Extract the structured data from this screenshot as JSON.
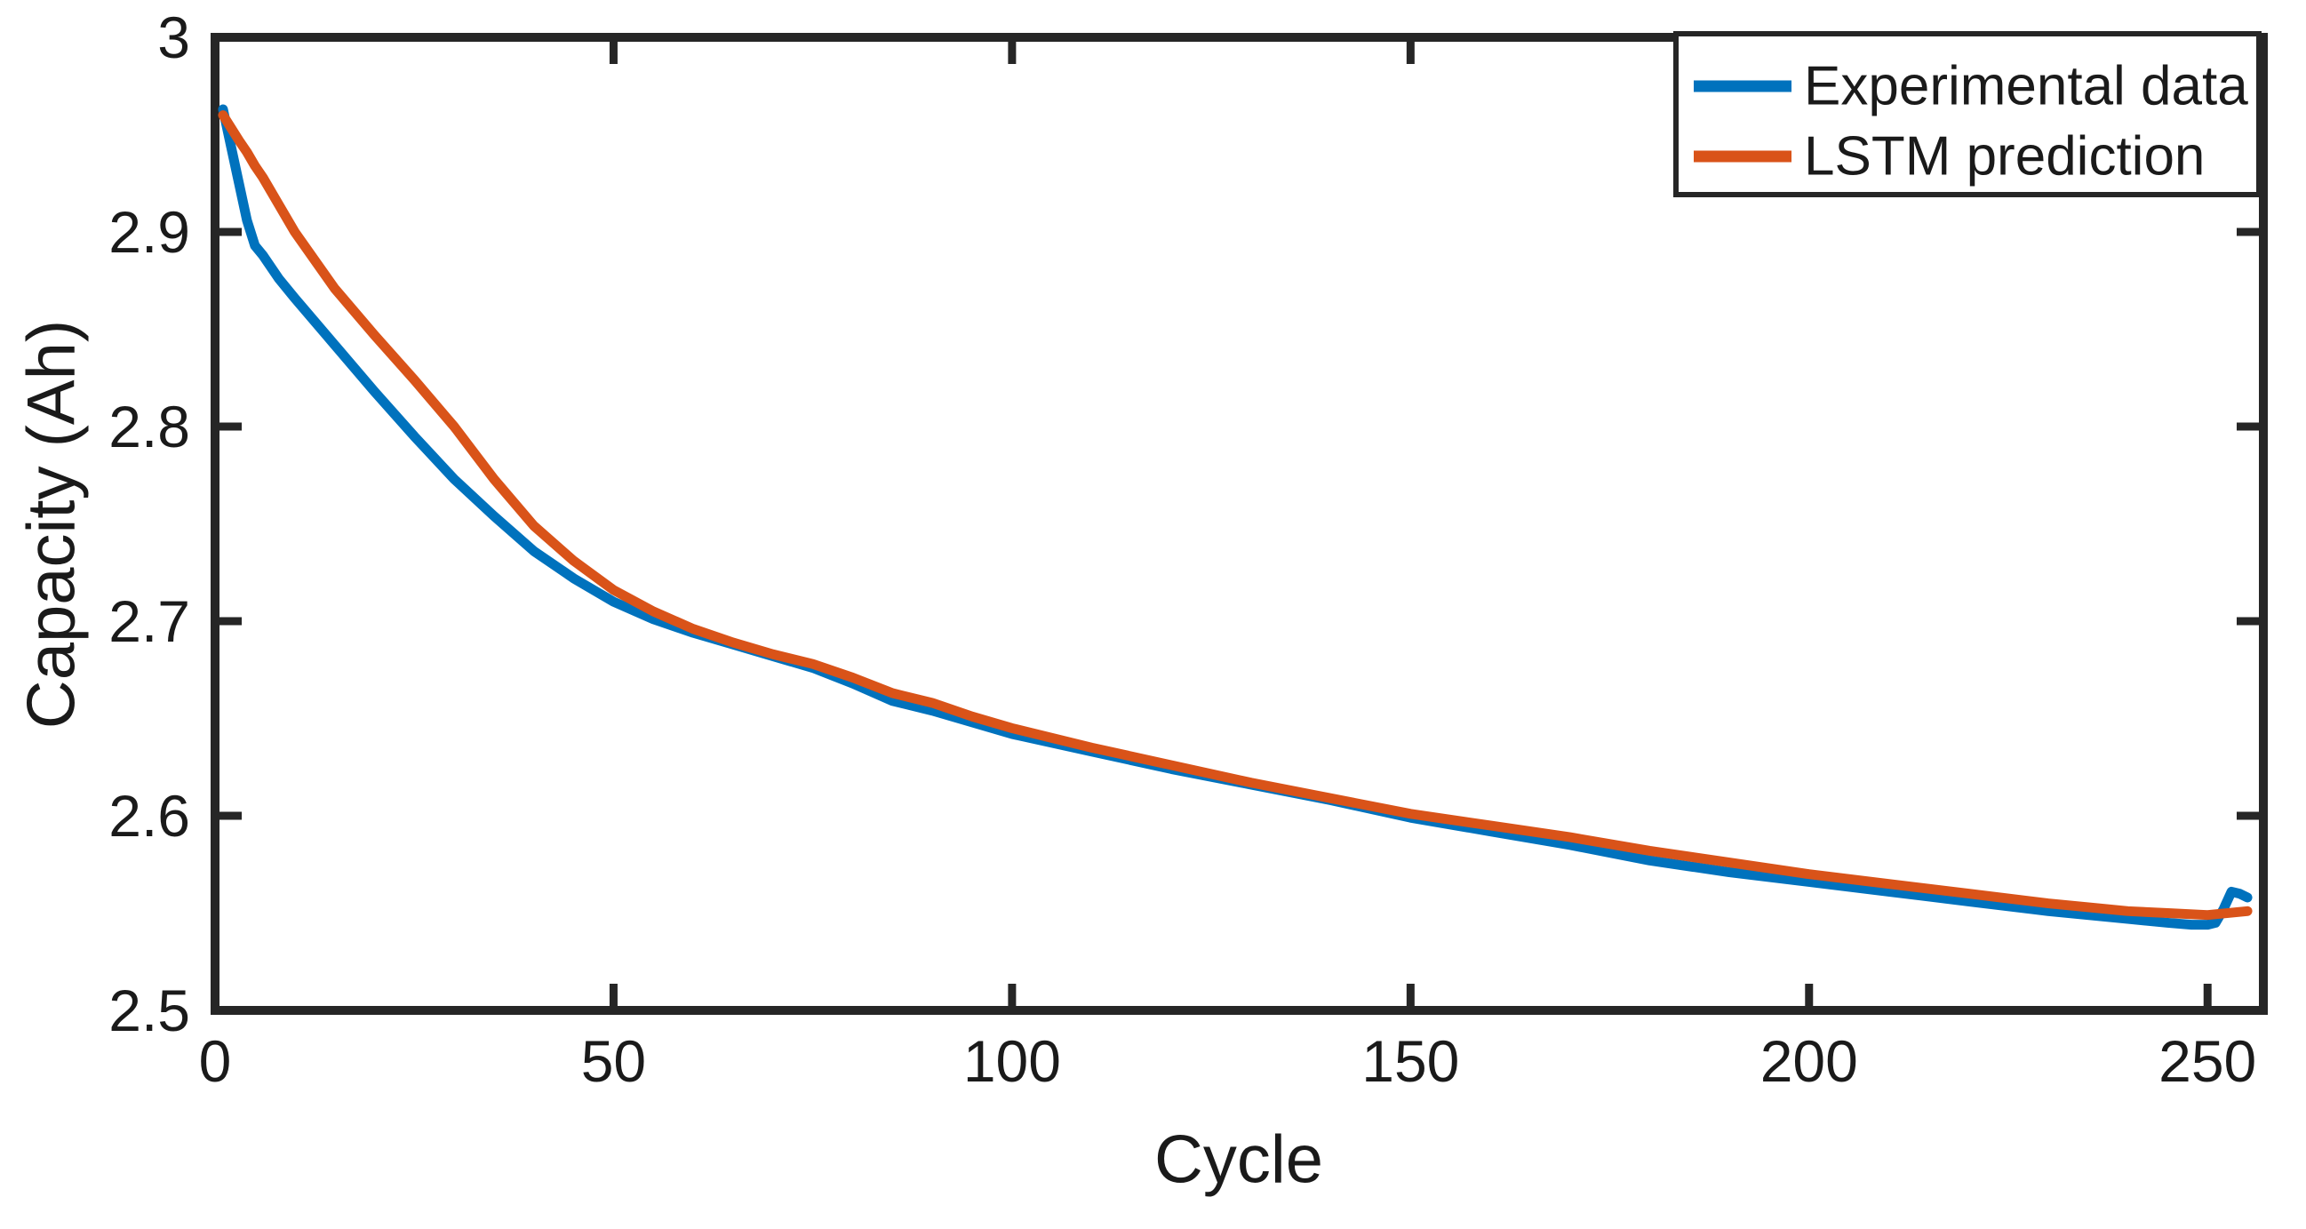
{
  "figure": {
    "background": "#ffffff",
    "axis_color": "#262626",
    "xlabel": "Cycle",
    "ylabel": "Capacity (Ah)",
    "legend": {
      "position": "top-right",
      "entries": [
        {
          "label": "Experimental data",
          "color": "#0072BD"
        },
        {
          "label": "LSTM prediction",
          "color": "#D95319"
        }
      ]
    }
  },
  "chart_data": {
    "type": "line",
    "title": "",
    "xlabel": "Cycle",
    "ylabel": "Capacity (Ah)",
    "xlim": [
      0,
      257
    ],
    "ylim": [
      2.5,
      3.0
    ],
    "x_ticks": [
      0,
      50,
      100,
      150,
      200,
      250
    ],
    "x_tick_labels": [
      "0",
      "50",
      "100",
      "150",
      "200",
      "250"
    ],
    "y_ticks": [
      2.5,
      2.6,
      2.7,
      2.8,
      2.9,
      3.0
    ],
    "y_tick_labels": [
      "2.5",
      "2.6",
      "2.7",
      "2.8",
      "2.9",
      "3"
    ],
    "grid": false,
    "legend_position": "top-right",
    "series": [
      {
        "name": "Experimental data",
        "color": "#0072BD",
        "x": [
          1,
          3,
          4,
          5,
          6,
          8,
          10,
          15,
          20,
          25,
          30,
          35,
          40,
          45,
          50,
          55,
          60,
          65,
          70,
          75,
          80,
          85,
          90,
          95,
          100,
          110,
          120,
          130,
          140,
          150,
          160,
          170,
          180,
          190,
          200,
          210,
          220,
          230,
          240,
          245,
          248,
          250,
          251,
          252,
          253,
          254,
          255
        ],
        "values": [
          2.963,
          2.925,
          2.906,
          2.893,
          2.888,
          2.876,
          2.866,
          2.842,
          2.818,
          2.795,
          2.773,
          2.754,
          2.736,
          2.722,
          2.71,
          2.701,
          2.694,
          2.688,
          2.682,
          2.676,
          2.668,
          2.659,
          2.654,
          2.648,
          2.642,
          2.633,
          2.624,
          2.616,
          2.608,
          2.599,
          2.592,
          2.585,
          2.577,
          2.571,
          2.566,
          2.561,
          2.556,
          2.551,
          2.547,
          2.545,
          2.544,
          2.544,
          2.545,
          2.552,
          2.561,
          2.56,
          2.558
        ]
      },
      {
        "name": "LSTM prediction",
        "color": "#D95319",
        "x": [
          1,
          3,
          4,
          5,
          6,
          8,
          10,
          15,
          20,
          25,
          30,
          35,
          40,
          45,
          50,
          55,
          60,
          65,
          70,
          75,
          80,
          85,
          90,
          95,
          100,
          110,
          120,
          130,
          140,
          150,
          160,
          170,
          180,
          190,
          200,
          210,
          220,
          230,
          240,
          245,
          250,
          255
        ],
        "values": [
          2.96,
          2.947,
          2.941,
          2.934,
          2.928,
          2.914,
          2.9,
          2.871,
          2.847,
          2.824,
          2.8,
          2.773,
          2.749,
          2.731,
          2.716,
          2.705,
          2.696,
          2.689,
          2.683,
          2.678,
          2.671,
          2.663,
          2.658,
          2.651,
          2.645,
          2.635,
          2.626,
          2.617,
          2.609,
          2.601,
          2.595,
          2.589,
          2.582,
          2.576,
          2.57,
          2.565,
          2.56,
          2.555,
          2.551,
          2.55,
          2.549,
          2.551
        ]
      }
    ]
  }
}
